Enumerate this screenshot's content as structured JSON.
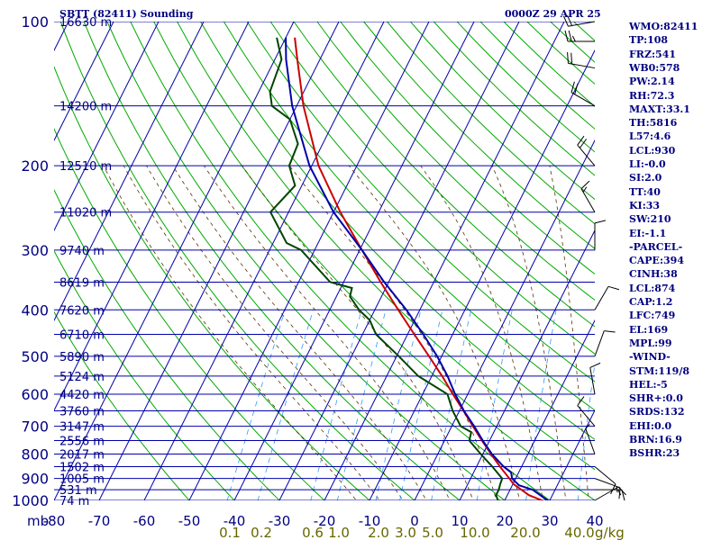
{
  "header": {
    "title": "SBTT (82411) Sounding",
    "timestamp": "0000Z 29 APR 25"
  },
  "indices": [
    "WMO:82411",
    "TP:108",
    "FRZ:541",
    "WB0:578",
    "PW:2.14",
    "RH:72.3",
    "MAXT:33.1",
    "TH:5816",
    "L57:4.6",
    "LCL:930",
    "LI:-0.0",
    "SI:2.0",
    "TT:40",
    "KI:33",
    "SW:210",
    "EI:-1.1",
    "-PARCEL-",
    "CAPE:394",
    "CINH:38",
    "LCL:874",
    "CAP:1.2",
    "LFC:749",
    "EL:169",
    "MPL:99",
    "-WIND-",
    "STM:119/8",
    "HEL:-5",
    "SHR+:0.0",
    "SRDS:132",
    "EHI:0.0",
    "BRN:16.9",
    "BSHR:23"
  ],
  "chart_data": {
    "type": "line",
    "subtype": "skew-t log-p sounding",
    "x_unit_label": "mb",
    "x_ticks": [
      -80,
      -70,
      -60,
      -50,
      -40,
      -30,
      -20,
      -10,
      0,
      10,
      20,
      30,
      40
    ],
    "y_ticks": [
      100,
      200,
      300,
      400,
      500,
      600,
      700,
      800,
      900,
      1000
    ],
    "ylim": [
      1000,
      100
    ],
    "y_scale": "log",
    "height_labels": [
      {
        "p": 100,
        "label": "16630 m"
      },
      {
        "p": 150,
        "label": "14200 m"
      },
      {
        "p": 200,
        "label": "12510 m"
      },
      {
        "p": 250,
        "label": "11020 m"
      },
      {
        "p": 300,
        "label": "9740 m"
      },
      {
        "p": 350,
        "label": "8619 m"
      },
      {
        "p": 400,
        "label": "7620 m"
      },
      {
        "p": 450,
        "label": "6710 m"
      },
      {
        "p": 500,
        "label": "5890 m"
      },
      {
        "p": 550,
        "label": "5124 m"
      },
      {
        "p": 600,
        "label": "4420 m"
      },
      {
        "p": 650,
        "label": "3760 m"
      },
      {
        "p": 700,
        "label": "3147 m"
      },
      {
        "p": 750,
        "label": "2556 m"
      },
      {
        "p": 800,
        "label": "2017 m"
      },
      {
        "p": 850,
        "label": "1502 m"
      },
      {
        "p": 900,
        "label": "1005 m"
      },
      {
        "p": 950,
        "label": "531 m"
      },
      {
        "p": 1000,
        "label": "74 m"
      }
    ],
    "mixing_ratio_labels": [
      "0.1",
      "0.2",
      "0.6",
      "1.0",
      "2.0",
      "3.0",
      "5.0",
      "10.0",
      "20.0",
      "40.0"
    ],
    "mixing_ratio_unit": "g/kg",
    "series": [
      {
        "role": "temperature",
        "color": "#cc0000",
        "points": [
          [
            1008,
            29.5
          ],
          [
            1000,
            28.3
          ],
          [
            975,
            24.8
          ],
          [
            950,
            22.5
          ],
          [
            925,
            20.2
          ],
          [
            900,
            18.6
          ],
          [
            850,
            15.2
          ],
          [
            800,
            11.8
          ],
          [
            750,
            8.3
          ],
          [
            700,
            4.7
          ],
          [
            650,
            0.9
          ],
          [
            600,
            -3.3
          ],
          [
            550,
            -7.7
          ],
          [
            500,
            -12.8
          ],
          [
            450,
            -18.5
          ],
          [
            400,
            -24.8
          ],
          [
            350,
            -31.8
          ],
          [
            300,
            -39.5
          ],
          [
            250,
            -48.5
          ],
          [
            200,
            -58.5
          ],
          [
            150,
            -68.5
          ],
          [
            120,
            -75.0
          ],
          [
            108,
            -78.0
          ]
        ]
      },
      {
        "role": "dewpoint",
        "color": "#004400",
        "points": [
          [
            1008,
            21.0
          ],
          [
            1000,
            18.5
          ],
          [
            975,
            17.5
          ],
          [
            950,
            17.5
          ],
          [
            925,
            17.2
          ],
          [
            900,
            17.0
          ],
          [
            850,
            13.5
          ],
          [
            800,
            9.5
          ],
          [
            750,
            5.5
          ],
          [
            720,
            5.0
          ],
          [
            700,
            2.0
          ],
          [
            650,
            -1.5
          ],
          [
            600,
            -4.5
          ],
          [
            550,
            -13.0
          ],
          [
            500,
            -19.5
          ],
          [
            450,
            -27.0
          ],
          [
            420,
            -30.0
          ],
          [
            400,
            -33.5
          ],
          [
            375,
            -37.0
          ],
          [
            360,
            -37.5
          ],
          [
            350,
            -43.0
          ],
          [
            300,
            -53.0
          ],
          [
            290,
            -57.0
          ],
          [
            250,
            -64.0
          ],
          [
            220,
            -61.5
          ],
          [
            200,
            -65.0
          ],
          [
            180,
            -65.5
          ],
          [
            160,
            -70.0
          ],
          [
            150,
            -75.5
          ],
          [
            140,
            -77.5
          ],
          [
            120,
            -78.5
          ],
          [
            108,
            -82.0
          ]
        ]
      },
      {
        "role": "parcel",
        "color": "#0000aa",
        "points": [
          [
            1008,
            30.5
          ],
          [
            1000,
            29.5
          ],
          [
            950,
            25.0
          ],
          [
            930,
            21.5
          ],
          [
            900,
            19.2
          ],
          [
            874,
            18.3
          ],
          [
            850,
            16.0
          ],
          [
            800,
            12.0
          ],
          [
            750,
            8.5
          ],
          [
            700,
            5.0
          ],
          [
            650,
            1.0
          ],
          [
            600,
            -2.8
          ],
          [
            550,
            -6.5
          ],
          [
            500,
            -11.0
          ],
          [
            450,
            -16.5
          ],
          [
            400,
            -23.0
          ],
          [
            350,
            -31.0
          ],
          [
            300,
            -39.5
          ],
          [
            250,
            -50.0
          ],
          [
            200,
            -60.5
          ],
          [
            150,
            -71.0
          ],
          [
            120,
            -77.5
          ],
          [
            108,
            -80.0
          ]
        ]
      }
    ],
    "wind_barbs": [
      {
        "p": 1000,
        "dir": 60,
        "spd": 10
      },
      {
        "p": 950,
        "dir": 90,
        "spd": 15
      },
      {
        "p": 900,
        "dir": 110,
        "spd": 15
      },
      {
        "p": 850,
        "dir": 130,
        "spd": 10
      },
      {
        "p": 800,
        "dir": 340,
        "spd": 5
      },
      {
        "p": 700,
        "dir": 320,
        "spd": 10
      },
      {
        "p": 600,
        "dir": 350,
        "spd": 10
      },
      {
        "p": 500,
        "dir": 20,
        "spd": 10
      },
      {
        "p": 400,
        "dir": 30,
        "spd": 10
      },
      {
        "p": 300,
        "dir": 0,
        "spd": 10
      },
      {
        "p": 250,
        "dir": 330,
        "spd": 15
      },
      {
        "p": 200,
        "dir": 320,
        "spd": 20
      },
      {
        "p": 150,
        "dir": 300,
        "spd": 20
      },
      {
        "p": 125,
        "dir": 280,
        "spd": 20
      },
      {
        "p": 110,
        "dir": 270,
        "spd": 25
      },
      {
        "p": 100,
        "dir": 260,
        "spd": 20
      }
    ],
    "colors": {
      "isobar": "#0000aa",
      "isotherm": "#0000aa",
      "dry_adiabat": "#00aa00",
      "moist_adiabat": "#553300",
      "mixing_ratio": "#3399ff",
      "axis_text": "#000080",
      "mixing_text": "#666600",
      "barbs": "#000000"
    },
    "grid": true
  }
}
